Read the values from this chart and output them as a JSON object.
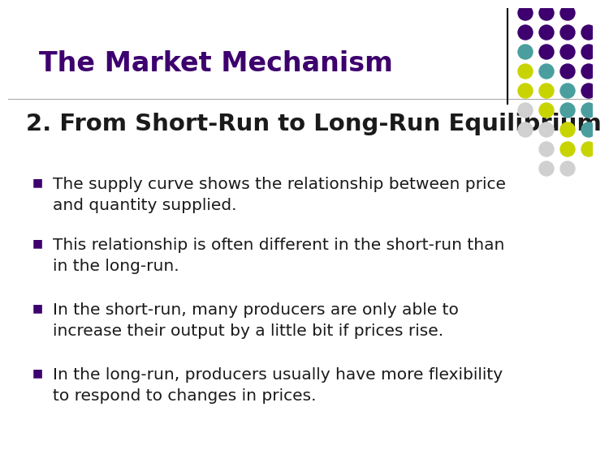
{
  "title": "The Market Mechanism",
  "subtitle": "2. From Short-Run to Long-Run Equilibrium",
  "bullets": [
    "The supply curve shows the relationship between price\nand quantity supplied.",
    "This relationship is often different in the short-run than\nin the long-run.",
    "In the short-run, many producers are only able to\nincrease their output by a little bit if prices rise.",
    "In the long-run, producers usually have more flexibility\nto respond to changes in prices."
  ],
  "title_color": "#3d006e",
  "subtitle_color": "#1a1a1a",
  "bullet_color": "#1a1a1a",
  "bullet_dot_color": "#3d006e",
  "background_color": "#ffffff",
  "title_fontsize": 24,
  "subtitle_fontsize": 21,
  "bullet_fontsize": 14.5,
  "dot_grid_colors": [
    [
      "#3d006e",
      "#3d006e",
      "#3d006e"
    ],
    [
      "#3d006e",
      "#3d006e",
      "#3d006e",
      "#3d006e"
    ],
    [
      "#3d006e",
      "#3d006e",
      "#3d006e",
      "#4a9e9e"
    ],
    [
      "#3d006e",
      "#3d006e",
      "#4a9e9e",
      "#c8d400"
    ],
    [
      "#3d006e",
      "#4a9e9e",
      "#c8d400",
      "#c8d400"
    ],
    [
      "#4a9e9e",
      "#4a9e9e",
      "#c8d400",
      "#d0d0d0"
    ],
    [
      "#4a9e9e",
      "#c8d400",
      "#c8d400",
      "#d0d0d0"
    ],
    [
      "#c8d400",
      "#c8d400",
      "#d0d0d0"
    ],
    [
      "#c8d400",
      "#d0d0d0",
      "#d0d0d0"
    ]
  ]
}
